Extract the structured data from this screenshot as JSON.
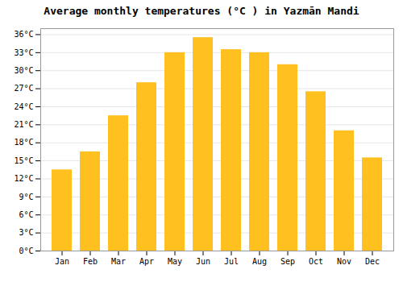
{
  "chart_data": {
    "type": "bar",
    "title": "Average monthly temperatures (°C ) in Yazmān Mandi",
    "categories": [
      "Jan",
      "Feb",
      "Mar",
      "Apr",
      "May",
      "Jun",
      "Jul",
      "Aug",
      "Sep",
      "Oct",
      "Nov",
      "Dec"
    ],
    "values": [
      13.5,
      16.5,
      22.5,
      28.0,
      33.0,
      35.5,
      33.5,
      33.0,
      31.0,
      26.5,
      20.0,
      15.5
    ],
    "color": "#FFC020",
    "ylim": [
      0,
      37
    ],
    "yticks": [
      {
        "value": 0,
        "label": "0°C"
      },
      {
        "value": 3,
        "label": "3°C"
      },
      {
        "value": 6,
        "label": "6°C"
      },
      {
        "value": 9,
        "label": "9°C"
      },
      {
        "value": 12,
        "label": "12°C"
      },
      {
        "value": 15,
        "label": "15°C"
      },
      {
        "value": 18,
        "label": "18°C"
      },
      {
        "value": 21,
        "label": "21°C"
      },
      {
        "value": 24,
        "label": "24°C"
      },
      {
        "value": 27,
        "label": "27°C"
      },
      {
        "value": 30,
        "label": "30°C"
      },
      {
        "value": 33,
        "label": "33°C"
      },
      {
        "value": 36,
        "label": "36°C"
      }
    ],
    "grid": true
  }
}
